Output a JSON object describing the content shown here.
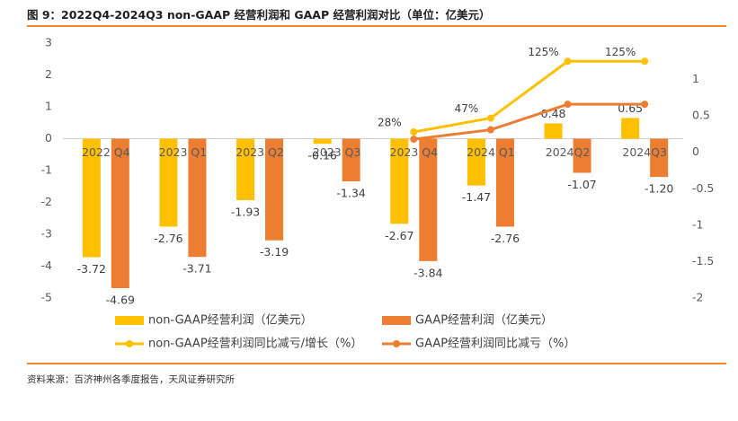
{
  "figure": {
    "title": "图 9：2022Q4-2024Q3 non-GAAP 经营利润和 GAAP 经营利润对比（单位：亿美元）",
    "source": "资料来源：百济神州各季度报告，天风证券研究所"
  },
  "colors": {
    "accent_rule": "#f08a28",
    "nongaap_bar": "#ffc000",
    "gaap_bar": "#ed7d31",
    "nongaap_line": "#ffc000",
    "gaap_line": "#ed7d31",
    "axis_text": "#595959"
  },
  "chart_data": {
    "type": "bar",
    "title": "",
    "xlabel": "",
    "ylabel": "",
    "categories": [
      "2022 Q4",
      "2023 Q1",
      "2023 Q2",
      "2023 Q3",
      "2023 Q4",
      "2024 Q1",
      "2024Q2",
      "2024Q3"
    ],
    "ylim": [
      -5,
      3
    ],
    "yticks": [
      3,
      2,
      1,
      0,
      -1,
      -2,
      -3,
      -4,
      -5
    ],
    "y2lim": [
      -2,
      1.5
    ],
    "y2ticks": [
      "1.5",
      "1",
      "0.5",
      "0",
      "-0.5",
      "-1",
      "-1.5",
      "-2"
    ],
    "y2ticks_shown": [
      "1",
      "0.5",
      "0",
      "-0.5",
      "-1",
      "-1.5",
      "-2"
    ],
    "grid": false,
    "legend_position": "bottom",
    "series": [
      {
        "name": "non-GAAP经营利润（亿美元）",
        "kind": "bar",
        "axis": "left",
        "values": [
          -3.72,
          -2.76,
          -1.93,
          -0.16,
          -2.67,
          -1.47,
          0.48,
          0.65
        ],
        "labels": [
          "-3.72",
          "-2.76",
          "-1.93",
          "-0.16",
          "-2.67",
          "-1.47",
          "0.48",
          "0.65"
        ]
      },
      {
        "name": "GAAP经营利润（亿美元）",
        "kind": "bar",
        "axis": "left",
        "values": [
          -4.69,
          -3.71,
          -3.19,
          -1.34,
          -3.84,
          -2.76,
          -1.07,
          -1.2
        ],
        "labels": [
          "-4.69",
          "-3.71",
          "-3.19",
          "-1.34",
          "-3.84",
          "-2.76",
          "-1.07",
          "-1.20"
        ]
      },
      {
        "name": "non-GAAP经营利润同比减亏/增长（%）",
        "kind": "line",
        "axis": "right",
        "x": [
          "2023 Q4",
          "2024 Q1",
          "2024Q2",
          "2024Q3"
        ],
        "values": [
          0.28,
          0.47,
          1.25,
          1.25
        ],
        "labels": [
          "28%",
          "47%",
          "125%",
          "125%"
        ]
      },
      {
        "name": "GAAP经营利润同比减亏（%）",
        "kind": "line",
        "axis": "right",
        "x": [
          "2023 Q4",
          "2024 Q1",
          "2024Q2",
          "2024Q3"
        ],
        "values": [
          0.18,
          0.31,
          0.66,
          0.66
        ]
      }
    ]
  }
}
